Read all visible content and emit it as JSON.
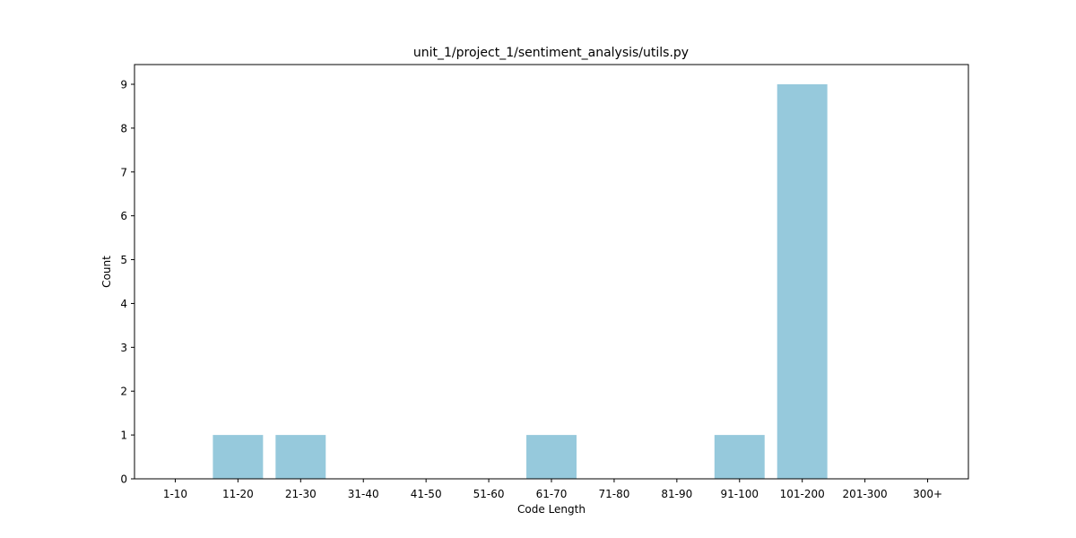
{
  "chart_data": {
    "type": "bar",
    "title": "unit_1/project_1/sentiment_analysis/utils.py",
    "xlabel": "Code Length",
    "ylabel": "Count",
    "categories": [
      "1-10",
      "11-20",
      "21-30",
      "31-40",
      "41-50",
      "51-60",
      "61-70",
      "71-80",
      "81-90",
      "91-100",
      "101-200",
      "201-300",
      "300+"
    ],
    "values": [
      0,
      1,
      1,
      0,
      0,
      0,
      1,
      0,
      0,
      1,
      9,
      0,
      0
    ],
    "ylim": [
      0,
      9.45
    ],
    "yticks": [
      0,
      1,
      2,
      3,
      4,
      5,
      6,
      7,
      8,
      9
    ],
    "bar_color": "#96c9dc",
    "grid": false,
    "legend": "none"
  }
}
